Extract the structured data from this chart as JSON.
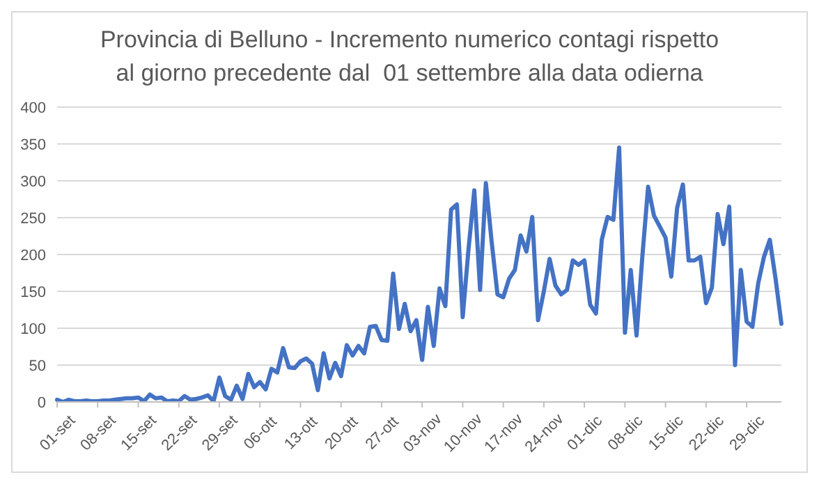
{
  "chart_data": {
    "type": "line",
    "title": "Provincia di Belluno - Incremento numerico contagi rispetto\nal giorno precedente dal  01 settembre alla data odierna",
    "categories": [
      "01-set",
      null,
      null,
      null,
      null,
      null,
      null,
      "08-set",
      null,
      null,
      null,
      null,
      null,
      null,
      "15-set",
      null,
      null,
      null,
      null,
      null,
      null,
      "22-set",
      null,
      null,
      null,
      null,
      null,
      null,
      "29-set",
      null,
      null,
      null,
      null,
      null,
      null,
      "06-ott",
      null,
      null,
      null,
      null,
      null,
      null,
      "13-ott",
      null,
      null,
      null,
      null,
      null,
      null,
      "20-ott",
      null,
      null,
      null,
      null,
      null,
      null,
      "27-ott",
      null,
      null,
      null,
      null,
      null,
      null,
      "03-nov",
      null,
      null,
      null,
      null,
      null,
      null,
      "10-nov",
      null,
      null,
      null,
      null,
      null,
      null,
      "17-nov",
      null,
      null,
      null,
      null,
      null,
      null,
      "24-nov",
      null,
      null,
      null,
      null,
      null,
      null,
      "01-dic",
      null,
      null,
      null,
      null,
      null,
      null,
      "08-dic",
      null,
      null,
      null,
      null,
      null,
      null,
      "15-dic",
      null,
      null,
      null,
      null,
      null,
      null,
      "22-dic",
      null,
      null,
      null,
      null,
      null,
      null,
      "29-dic",
      null,
      null,
      null,
      null,
      null,
      null
    ],
    "series": [
      {
        "color": "#4472c4",
        "values": [
          3,
          0,
          3,
          1,
          1,
          2,
          1,
          1,
          2,
          2,
          3,
          4,
          5,
          5,
          6,
          1,
          10,
          5,
          6,
          1,
          2,
          1,
          8,
          3,
          4,
          6,
          9,
          1,
          33,
          8,
          3,
          22,
          4,
          38,
          20,
          27,
          17,
          45,
          40,
          73,
          47,
          46,
          55,
          59,
          52,
          16,
          66,
          32,
          53,
          35,
          77,
          63,
          76,
          66,
          102,
          103,
          84,
          83,
          174,
          99,
          133,
          96,
          111,
          57,
          129,
          76,
          154,
          130,
          261,
          268,
          115,
          207,
          287,
          152,
          297,
          217,
          146,
          142,
          167,
          179,
          226,
          204,
          251,
          111,
          150,
          194,
          158,
          146,
          152,
          192,
          186,
          192,
          132,
          120,
          220,
          251,
          247,
          345,
          94,
          179,
          90,
          197,
          292,
          253,
          238,
          223,
          170,
          263,
          295,
          192,
          192,
          197,
          134,
          155,
          255,
          214,
          265,
          50,
          179,
          109,
          102,
          161,
          197,
          220,
          167,
          106
        ]
      }
    ],
    "ylim": [
      0,
      400
    ],
    "yticks": [
      0,
      50,
      100,
      150,
      200,
      250,
      300,
      350,
      400
    ],
    "grid": "y",
    "marker": "none",
    "line_style": "solid",
    "legend": false
  }
}
